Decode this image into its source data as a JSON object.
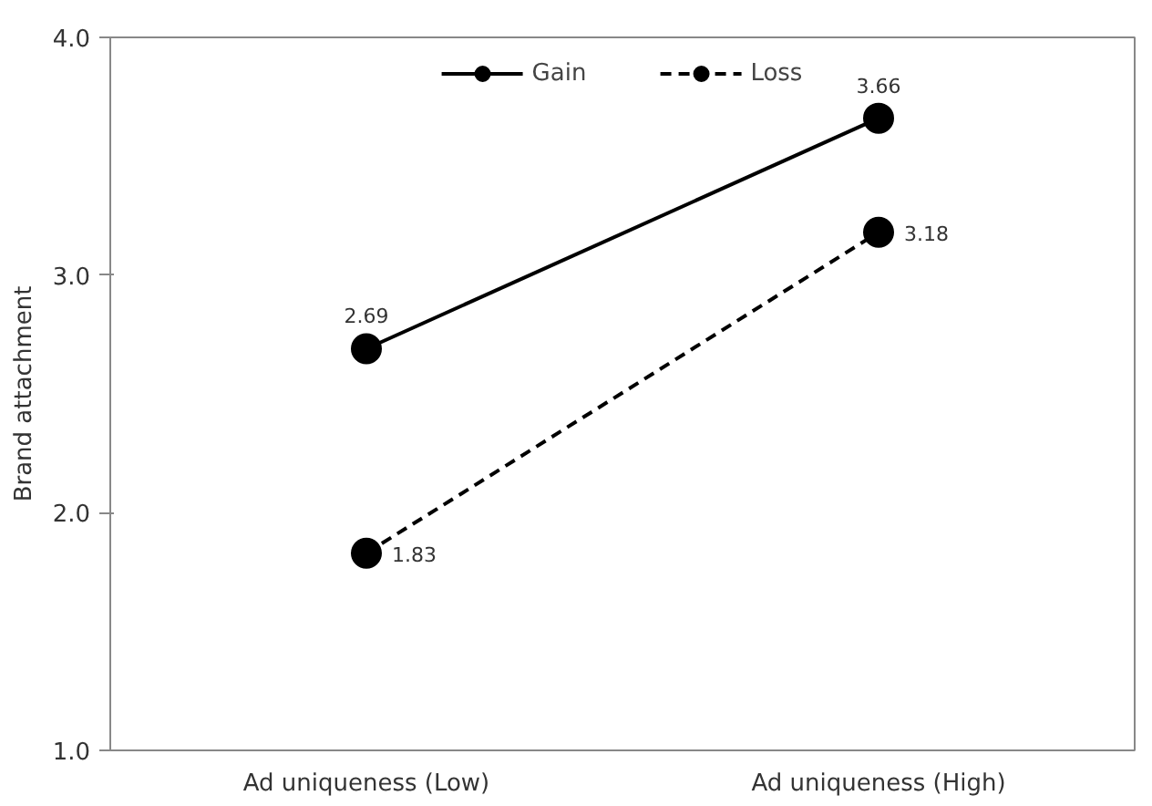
{
  "chart_data": {
    "type": "line",
    "ylabel": "Brand attachment",
    "categories": [
      "Ad uniqueness (Low)",
      "Ad uniqueness (High)"
    ],
    "series": [
      {
        "name": "Gain",
        "color": "#000000",
        "values": [
          2.69,
          3.66
        ],
        "line_style": "solid"
      },
      {
        "name": "Loss",
        "color": "#000000",
        "values": [
          1.83,
          3.18
        ],
        "line_style": "dashed"
      }
    ],
    "ylim": [
      1,
      4
    ],
    "yticks": [
      {
        "value": 1,
        "label": "1.0"
      },
      {
        "value": 2,
        "label": "2.0"
      },
      {
        "value": 3,
        "label": "3.0"
      },
      {
        "value": 4,
        "label": "4.0"
      }
    ],
    "marker": "circle",
    "legend": "top",
    "grid": false,
    "data_labels": true
  }
}
